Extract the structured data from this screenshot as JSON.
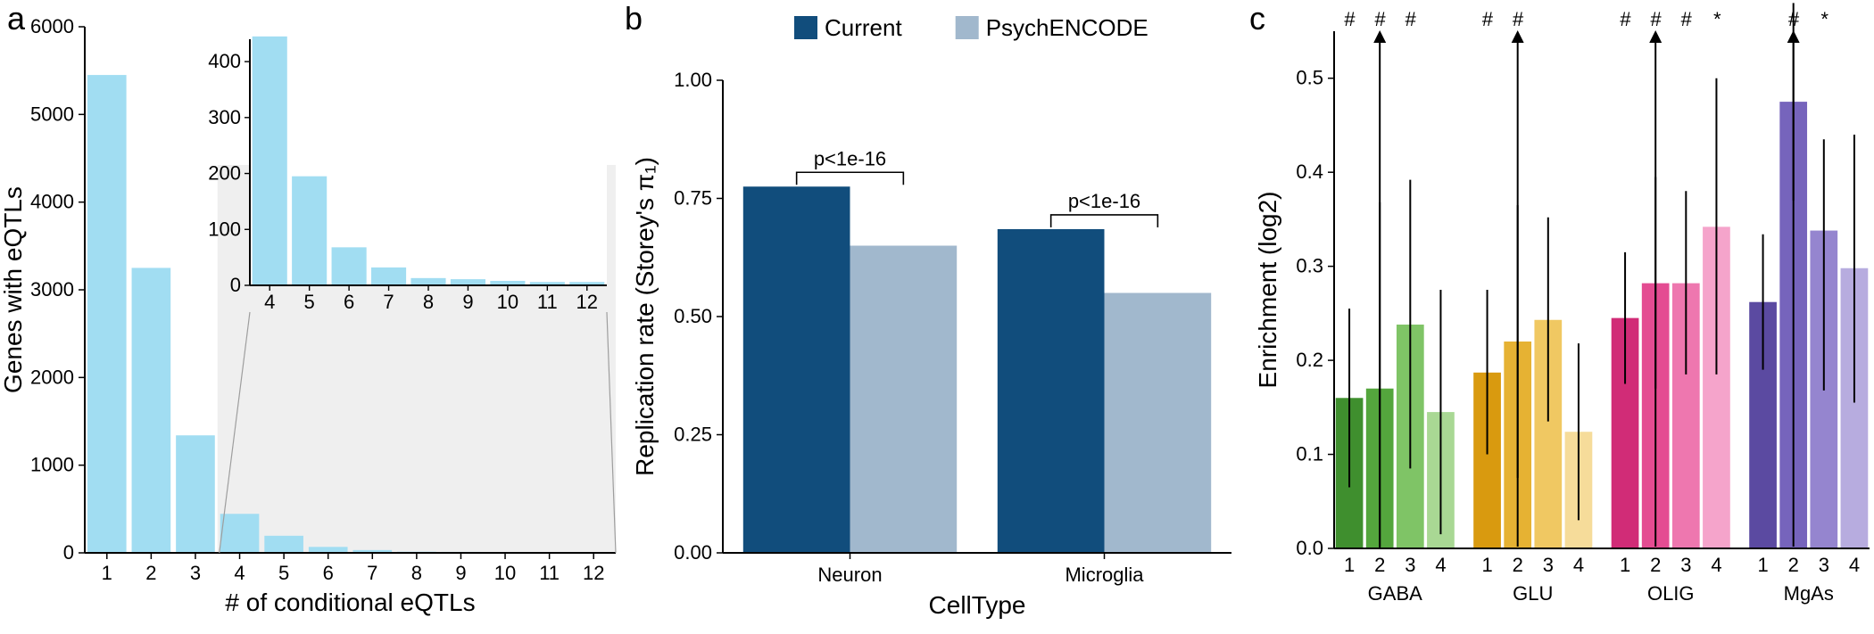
{
  "panelA": {
    "label": "a",
    "type": "bar",
    "x_title": "# of conditional eQTLs",
    "y_title": "Genes with eQTLs",
    "bar_color": "#A1DDF2",
    "background_color": "#ffffff",
    "axis_color": "#000000",
    "main": {
      "x": [
        1,
        2,
        3,
        4,
        5,
        6,
        7,
        8,
        9,
        10,
        11,
        12
      ],
      "y": [
        5450,
        3250,
        1340,
        445,
        195,
        68,
        32,
        13,
        11,
        8,
        6,
        6
      ],
      "ylim": [
        0,
        6000
      ],
      "ytick_step": 1000,
      "bar_width": 0.88
    },
    "inset": {
      "x": [
        4,
        5,
        6,
        7,
        8,
        9,
        10,
        11,
        12
      ],
      "y": [
        445,
        195,
        68,
        32,
        13,
        11,
        8,
        6,
        6
      ],
      "ylim": [
        0,
        440
      ],
      "yticks": [
        0,
        100,
        200,
        300,
        400
      ],
      "bar_width": 0.88,
      "bg": "#EFEFEF"
    }
  },
  "panelB": {
    "label": "b",
    "type": "grouped-bar",
    "x_title": "CellType",
    "y_title": "Replication rate (Storey's π₁)",
    "legend": [
      {
        "name": "Current",
        "color": "#114D7C"
      },
      {
        "name": "PsychENCODE",
        "color": "#A1B8CD"
      }
    ],
    "categories": [
      "Neuron",
      "Microglia"
    ],
    "values": {
      "Current": [
        0.775,
        0.685
      ],
      "PsychENCODE": [
        0.65,
        0.55
      ]
    },
    "pvalue_label": "p<1e-16",
    "ylim": [
      0,
      1.0
    ],
    "ytick_step": 0.25,
    "bar_width": 0.42
  },
  "panelC": {
    "label": "c",
    "type": "grouped-bar",
    "y_title": "Enrichment (log2)",
    "groups": [
      "GABA",
      "GLU",
      "OLIG",
      "MgAs"
    ],
    "subs": [
      "1",
      "2",
      "3",
      "4"
    ],
    "ylim": [
      0,
      0.55
    ],
    "yticks": [
      0.0,
      0.1,
      0.2,
      0.3,
      0.4,
      0.5
    ],
    "colors": {
      "GABA": [
        "#3F8F2E",
        "#54A63D",
        "#7FC466",
        "#A9D894"
      ],
      "GLU": [
        "#D99A0F",
        "#E6B233",
        "#F0C862",
        "#F6DC9A"
      ],
      "OLIG": [
        "#D12C77",
        "#E44C92",
        "#EE77AF",
        "#F5A4CB"
      ],
      "MgAs": [
        "#5B4AA1",
        "#7664BC",
        "#9585CF",
        "#B7ACDF"
      ]
    },
    "arrow_groups": [
      "GABA",
      "GLU",
      "OLIG",
      "MgAs"
    ],
    "arrow_sub_index": 1,
    "data": {
      "GABA": [
        {
          "val": 0.16,
          "lo": 0.065,
          "hi": 0.255,
          "sig": "#"
        },
        {
          "val": 0.17,
          "lo": 0.0,
          "hi": 0.368,
          "sig": "#"
        },
        {
          "val": 0.238,
          "lo": 0.085,
          "hi": 0.392,
          "sig": "#"
        },
        {
          "val": 0.145,
          "lo": 0.015,
          "hi": 0.275,
          "sig": ""
        }
      ],
      "GLU": [
        {
          "val": 0.187,
          "lo": 0.1,
          "hi": 0.275,
          "sig": "#"
        },
        {
          "val": 0.22,
          "lo": 0.075,
          "hi": 0.365,
          "sig": "#"
        },
        {
          "val": 0.243,
          "lo": 0.135,
          "hi": 0.352,
          "sig": ""
        },
        {
          "val": 0.124,
          "lo": 0.03,
          "hi": 0.218,
          "sig": ""
        }
      ],
      "OLIG": [
        {
          "val": 0.245,
          "lo": 0.175,
          "hi": 0.315,
          "sig": "#"
        },
        {
          "val": 0.282,
          "lo": 0.17,
          "hi": 0.395,
          "sig": "#"
        },
        {
          "val": 0.282,
          "lo": 0.185,
          "hi": 0.38,
          "sig": "#"
        },
        {
          "val": 0.342,
          "lo": 0.185,
          "hi": 0.5,
          "sig": "*"
        }
      ],
      "MgAs": [
        {
          "val": 0.262,
          "lo": 0.19,
          "hi": 0.334,
          "sig": ""
        },
        {
          "val": 0.475,
          "lo": 0.37,
          "hi": 0.58,
          "sig": "#"
        },
        {
          "val": 0.338,
          "lo": 0.168,
          "hi": 0.435,
          "sig": "*"
        },
        {
          "val": 0.298,
          "lo": 0.155,
          "hi": 0.44,
          "sig": ""
        }
      ]
    },
    "errorbar_color": "#000000",
    "bar_width": 0.9
  }
}
